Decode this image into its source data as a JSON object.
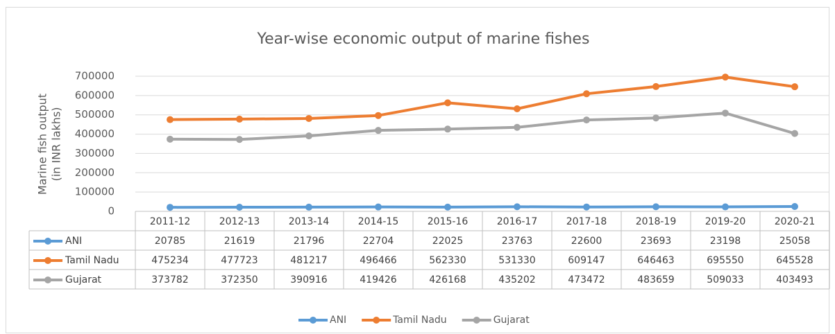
{
  "chart_data": {
    "type": "line",
    "title": "Year-wise economic output of marine fishes",
    "ylabel": [
      "Marine fish output",
      "(in INR lakhs)"
    ],
    "categories": [
      "2011-12",
      "2012-13",
      "2013-14",
      "2014-15",
      "2015-16",
      "2016-17",
      "2017-18",
      "2018-19",
      "2019-20",
      "2020-21"
    ],
    "series": [
      {
        "name": "ANI",
        "color": "#5b9bd5",
        "values": [
          20785,
          21619,
          21796,
          22704,
          22025,
          23763,
          22600,
          23693,
          23198,
          25058
        ]
      },
      {
        "name": "Tamil Nadu",
        "color": "#ed7d31",
        "values": [
          475234,
          477723,
          481217,
          496466,
          562330,
          531330,
          609147,
          646463,
          695550,
          645528
        ]
      },
      {
        "name": "Gujarat",
        "color": "#a5a5a5",
        "values": [
          373782,
          372350,
          390916,
          419426,
          426168,
          435202,
          473472,
          483659,
          509033,
          403493
        ]
      }
    ],
    "ylim": [
      0,
      700000
    ],
    "yticks": [
      0,
      100000,
      200000,
      300000,
      400000,
      500000,
      600000,
      700000
    ],
    "grid": true,
    "legend": "bottom",
    "data_table": true
  }
}
